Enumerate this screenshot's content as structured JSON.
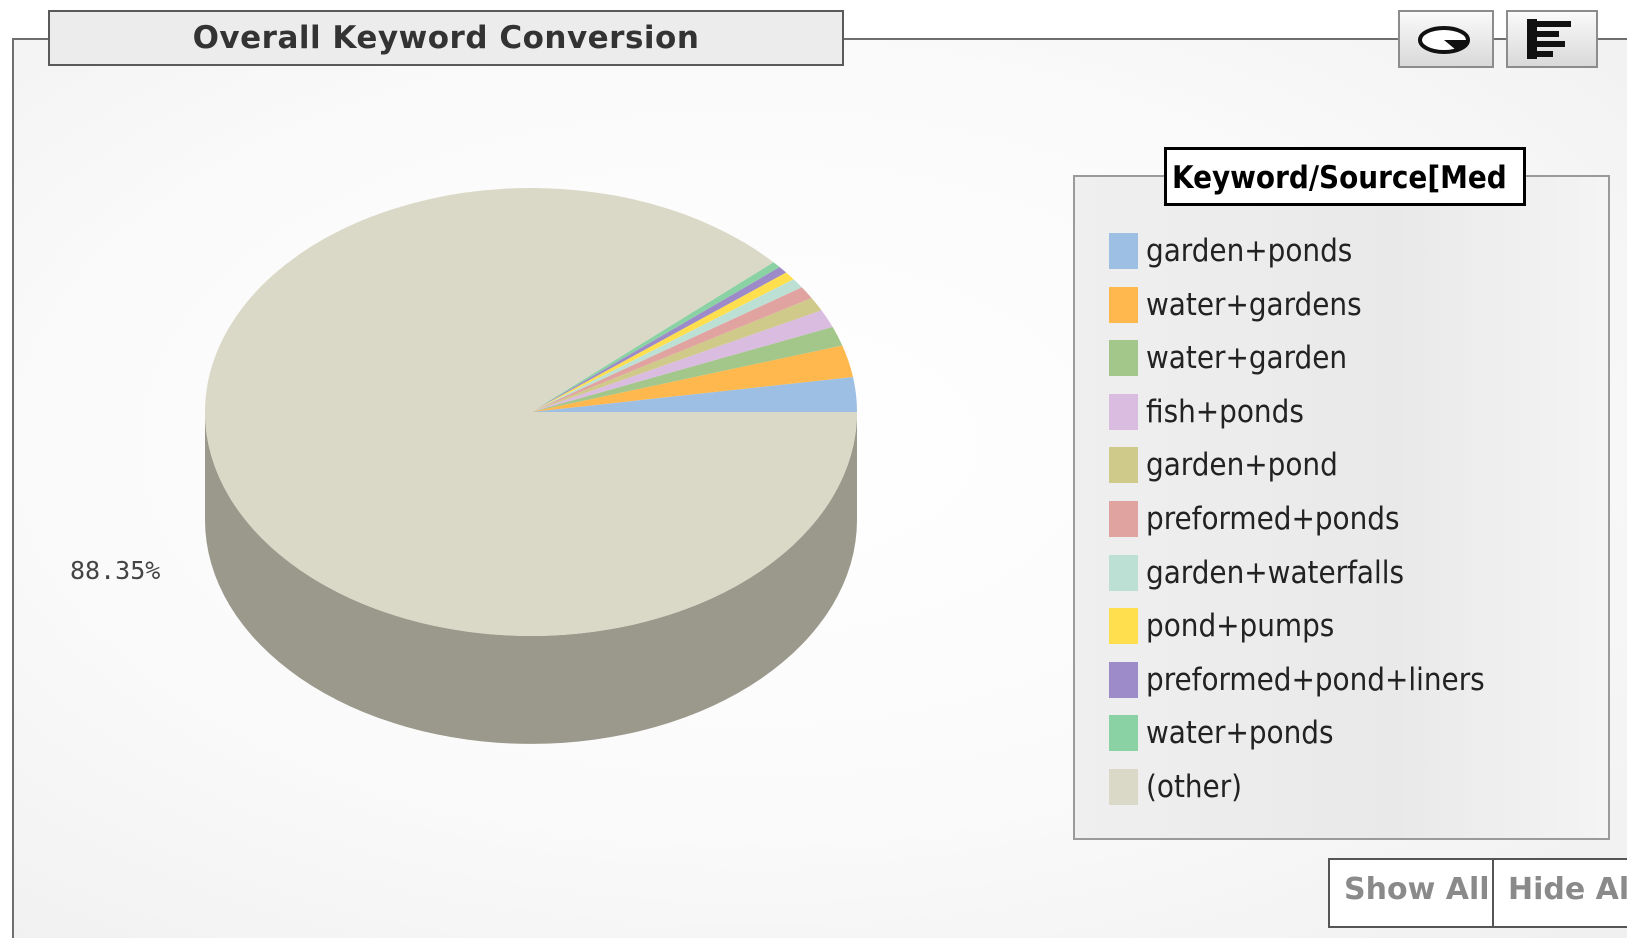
{
  "title": "Overall Keyword Conversion",
  "toolbar": {
    "pie_view": "pie-chart-icon",
    "bar_view": "bar-chart-icon"
  },
  "legend": {
    "title": "Keyword/Source[Med"
  },
  "buttons": {
    "show_all": "Show All",
    "hide_all": "Hide All"
  },
  "chart_data": {
    "type": "pie",
    "title": "Overall Keyword Conversion",
    "labels": [
      "garden+ponds",
      "water+gardens",
      "water+garden",
      "fish+ponds",
      "garden+pond",
      "preformed+ponds",
      "garden+waterfalls",
      "pond+pumps",
      "preformed+pond+liners",
      "water+ponds",
      "(other)"
    ],
    "values": [
      2.5,
      2.3,
      1.4,
      1.3,
      1.0,
      0.9,
      0.7,
      0.6,
      0.5,
      0.45,
      88.35
    ],
    "colors": [
      "#9dbfe3",
      "#ffb84d",
      "#a3c68a",
      "#d9bce0",
      "#cfc98a",
      "#e0a3a0",
      "#bde0d4",
      "#ffdf4d",
      "#9d8bc9",
      "#8ad1a3",
      "#dad9c7"
    ],
    "data_labels": [
      "",
      "",
      "",
      "",
      "",
      "",
      "",
      "",
      "",
      "",
      "88.35%"
    ],
    "legend_position": "right"
  }
}
